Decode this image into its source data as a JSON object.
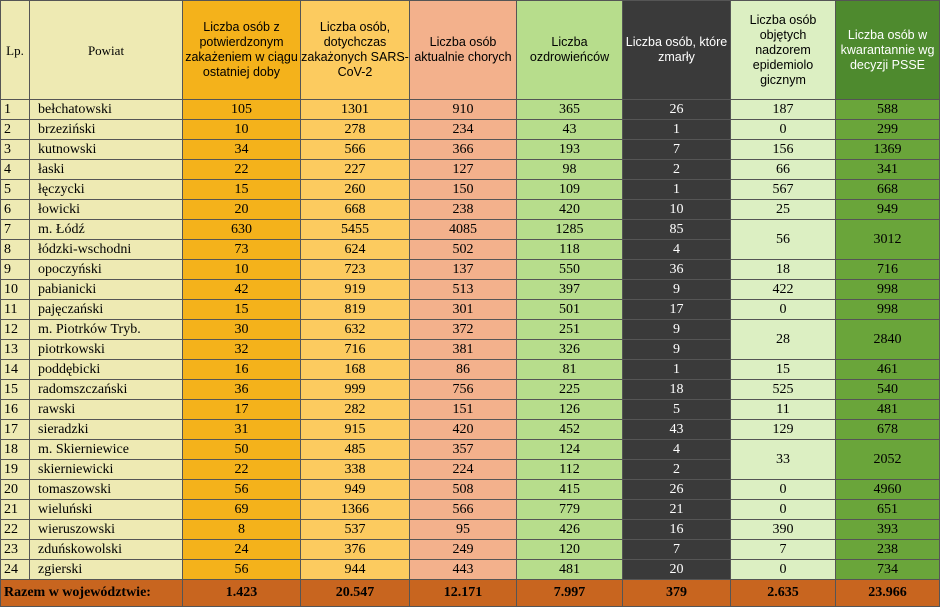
{
  "headers": {
    "lp": "Lp.",
    "powiat": "Powiat",
    "new_cases": "Liczba osób z potwierdzonym zakażeniem w ciągu ostatniej doby",
    "total_cases": "Liczba osób, dotychczas zakażonych SARS-CoV-2",
    "currently_ill": "Liczba osób aktualnie chorych",
    "recovered": "Liczba ozdrowieńców",
    "deaths": "Liczba osób, które zmarły",
    "supervision": "Liczba osób objętych nadzorem epidemiolo gicznym",
    "quarantine": "Liczba osób w kwarantannie wg decyzji PSSE"
  },
  "rows": [
    {
      "lp": "1",
      "powiat": "bełchatowski",
      "new": "105",
      "total": "1301",
      "ill": "910",
      "rec": "365",
      "dead": "26",
      "sup": "187",
      "qua": "588"
    },
    {
      "lp": "2",
      "powiat": "brzeziński",
      "new": "10",
      "total": "278",
      "ill": "234",
      "rec": "43",
      "dead": "1",
      "sup": "0",
      "qua": "299"
    },
    {
      "lp": "3",
      "powiat": "kutnowski",
      "new": "34",
      "total": "566",
      "ill": "366",
      "rec": "193",
      "dead": "7",
      "sup": "156",
      "qua": "1369"
    },
    {
      "lp": "4",
      "powiat": "łaski",
      "new": "22",
      "total": "227",
      "ill": "127",
      "rec": "98",
      "dead": "2",
      "sup": "66",
      "qua": "341"
    },
    {
      "lp": "5",
      "powiat": "łęczycki",
      "new": "15",
      "total": "260",
      "ill": "150",
      "rec": "109",
      "dead": "1",
      "sup": "567",
      "qua": "668"
    },
    {
      "lp": "6",
      "powiat": "łowicki",
      "new": "20",
      "total": "668",
      "ill": "238",
      "rec": "420",
      "dead": "10",
      "sup": "25",
      "qua": "949"
    },
    {
      "lp": "7",
      "powiat": "m. Łódź",
      "new": "630",
      "total": "5455",
      "ill": "4085",
      "rec": "1285",
      "dead": "85",
      "sup": "56",
      "qua": "3012"
    },
    {
      "lp": "8",
      "powiat": "łódzki-wschodni",
      "new": "73",
      "total": "624",
      "ill": "502",
      "rec": "118",
      "dead": "4"
    },
    {
      "lp": "9",
      "powiat": "opoczyński",
      "new": "10",
      "total": "723",
      "ill": "137",
      "rec": "550",
      "dead": "36",
      "sup": "18",
      "qua": "716"
    },
    {
      "lp": "10",
      "powiat": "pabianicki",
      "new": "42",
      "total": "919",
      "ill": "513",
      "rec": "397",
      "dead": "9",
      "sup": "422",
      "qua": "998"
    },
    {
      "lp": "11",
      "powiat": "pajęczański",
      "new": "15",
      "total": "819",
      "ill": "301",
      "rec": "501",
      "dead": "17",
      "sup": "0",
      "qua": "998"
    },
    {
      "lp": "12",
      "powiat": "m. Piotrków Tryb.",
      "new": "30",
      "total": "632",
      "ill": "372",
      "rec": "251",
      "dead": "9",
      "sup": "28",
      "qua": "2840"
    },
    {
      "lp": "13",
      "powiat": "piotrkowski",
      "new": "32",
      "total": "716",
      "ill": "381",
      "rec": "326",
      "dead": "9"
    },
    {
      "lp": "14",
      "powiat": "poddębicki",
      "new": "16",
      "total": "168",
      "ill": "86",
      "rec": "81",
      "dead": "1",
      "sup": "15",
      "qua": "461"
    },
    {
      "lp": "15",
      "powiat": "radomszczański",
      "new": "36",
      "total": "999",
      "ill": "756",
      "rec": "225",
      "dead": "18",
      "sup": "525",
      "qua": "540"
    },
    {
      "lp": "16",
      "powiat": "rawski",
      "new": "17",
      "total": "282",
      "ill": "151",
      "rec": "126",
      "dead": "5",
      "sup": "11",
      "qua": "481"
    },
    {
      "lp": "17",
      "powiat": "sieradzki",
      "new": "31",
      "total": "915",
      "ill": "420",
      "rec": "452",
      "dead": "43",
      "sup": "129",
      "qua": "678"
    },
    {
      "lp": "18",
      "powiat": "m. Skierniewice",
      "new": "50",
      "total": "485",
      "ill": "357",
      "rec": "124",
      "dead": "4",
      "sup": "33",
      "qua": "2052"
    },
    {
      "lp": "19",
      "powiat": "skierniewicki",
      "new": "22",
      "total": "338",
      "ill": "224",
      "rec": "112",
      "dead": "2"
    },
    {
      "lp": "20",
      "powiat": "tomaszowski",
      "new": "56",
      "total": "949",
      "ill": "508",
      "rec": "415",
      "dead": "26",
      "sup": "0",
      "qua": "4960"
    },
    {
      "lp": "21",
      "powiat": "wieluński",
      "new": "69",
      "total": "1366",
      "ill": "566",
      "rec": "779",
      "dead": "21",
      "sup": "0",
      "qua": "651"
    },
    {
      "lp": "22",
      "powiat": "wieruszowski",
      "new": "8",
      "total": "537",
      "ill": "95",
      "rec": "426",
      "dead": "16",
      "sup": "390",
      "qua": "393"
    },
    {
      "lp": "23",
      "powiat": "zduńskowolski",
      "new": "24",
      "total": "376",
      "ill": "249",
      "rec": "120",
      "dead": "7",
      "sup": "7",
      "qua": "238"
    },
    {
      "lp": "24",
      "powiat": "zgierski",
      "new": "56",
      "total": "944",
      "ill": "443",
      "rec": "481",
      "dead": "20",
      "sup": "0",
      "qua": "734"
    }
  ],
  "totals": {
    "label": "Razem w województwie:",
    "new": "1.423",
    "total": "20.547",
    "ill": "12.171",
    "rec": "7.997",
    "dead": "379",
    "sup": "2.635",
    "qua": "23.966"
  }
}
